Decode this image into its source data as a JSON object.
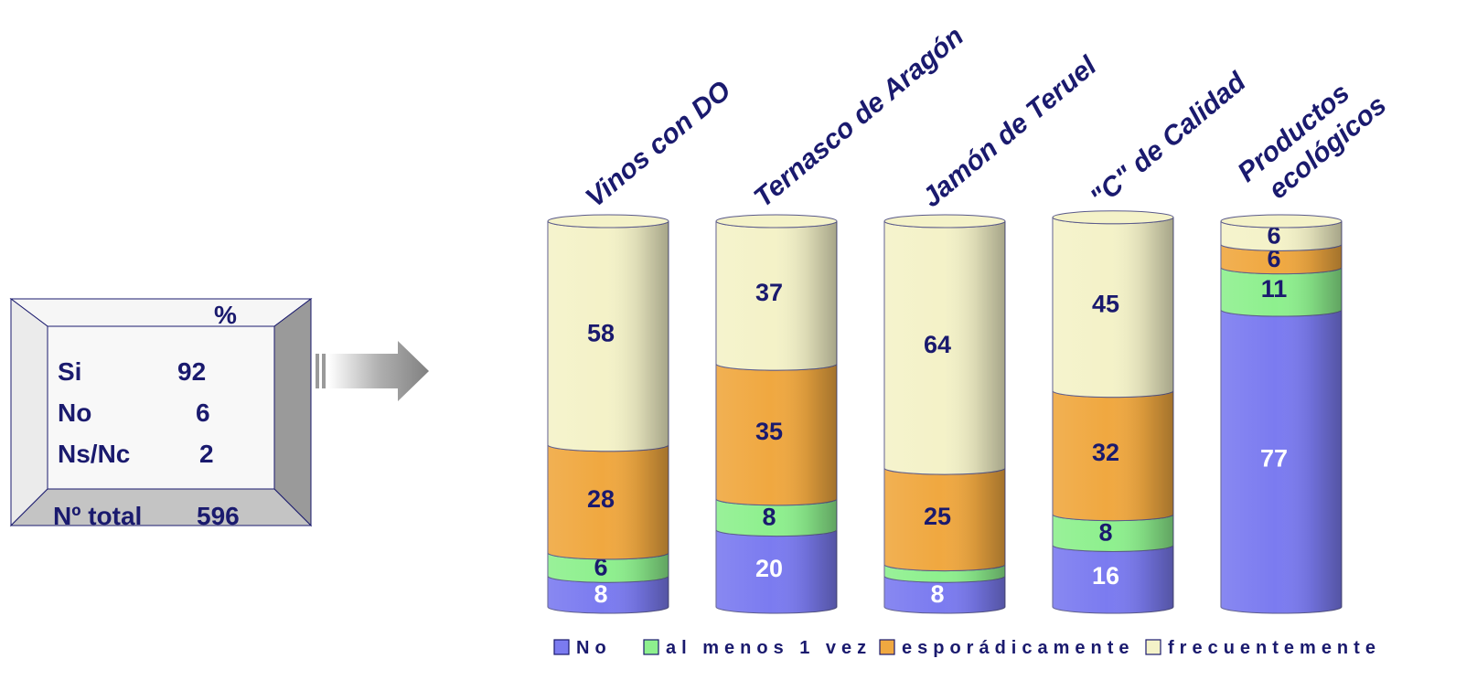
{
  "summary": {
    "header": "%",
    "rows": [
      {
        "label": "Si",
        "value": "92"
      },
      {
        "label": "No",
        "value": "6"
      },
      {
        "label": "Ns/Nc",
        "value": "2"
      }
    ],
    "total_label": "Nº total",
    "total_value": "596"
  },
  "chart_data": {
    "type": "bar",
    "stacked": true,
    "categories": [
      "Vinos con DO",
      "Ternasco de Aragón",
      "Jamón de Teruel",
      "\"C\" de Calidad",
      "Productos ecológicos"
    ],
    "category_lines": [
      [
        "Vinos con DO"
      ],
      [
        "Ternasco de Aragón"
      ],
      [
        "Jamón de Teruel"
      ],
      [
        "\"C\" de Calidad"
      ],
      [
        "Productos",
        "ecológicos"
      ]
    ],
    "series": [
      {
        "name": "No",
        "values": [
          8,
          20,
          8,
          16,
          77
        ],
        "labels": [
          "8",
          "20",
          "8",
          "16",
          "77"
        ],
        "color": "#7b7bf0"
      },
      {
        "name": "al menos 1 vez",
        "values": [
          6,
          8,
          3,
          8,
          11
        ],
        "labels": [
          "6",
          "8",
          "",
          "8",
          "11"
        ],
        "color": "#8ef08e"
      },
      {
        "name": "esporádicamente",
        "values": [
          28,
          35,
          25,
          32,
          6
        ],
        "labels": [
          "28",
          "35",
          "25",
          "32",
          "6"
        ],
        "color": "#f0a840"
      },
      {
        "name": "frecuentemente",
        "values": [
          58,
          37,
          64,
          45,
          6
        ],
        "labels": [
          "58",
          "37",
          "64",
          "45",
          "6"
        ],
        "color": "#f4f2c8"
      }
    ],
    "ylim": [
      0,
      100
    ],
    "legend": "bottom"
  }
}
